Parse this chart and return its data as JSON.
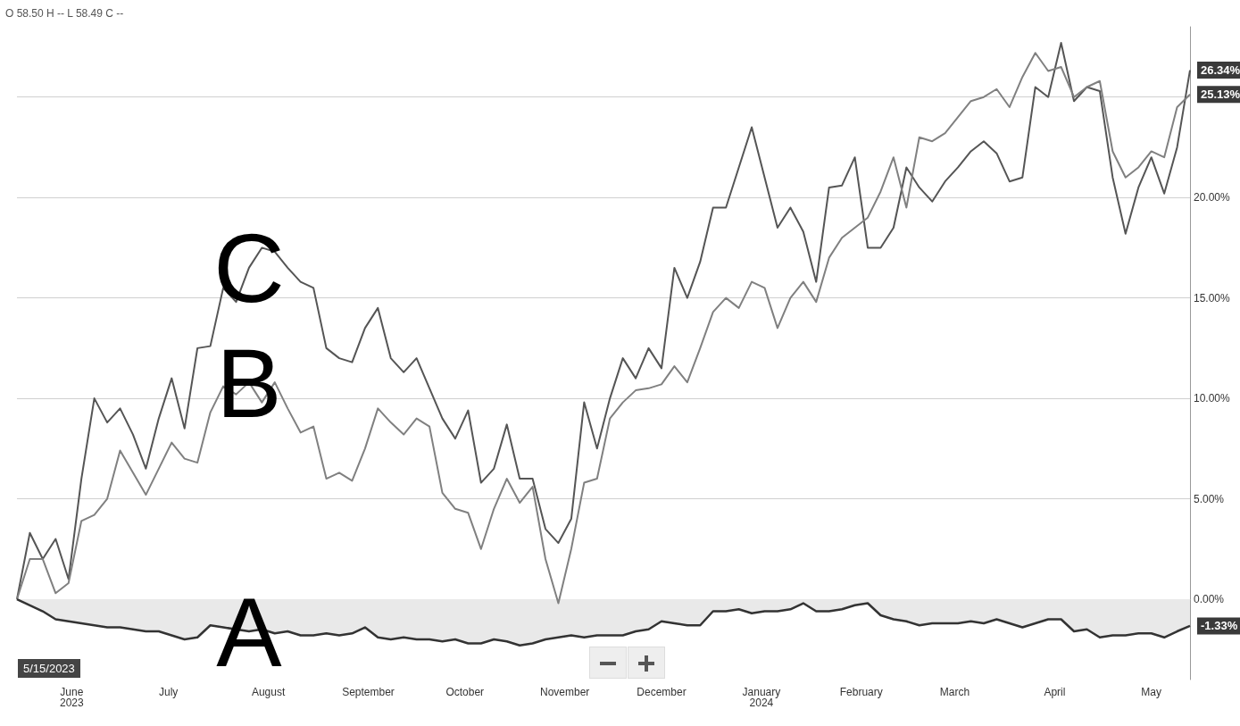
{
  "chart_data": {
    "type": "line",
    "annotations": [
      "O 58.50 H -- L 58.49 C --",
      "5/15/2023"
    ],
    "x": [
      "2023-05-15",
      "2023-05-19",
      "2023-05-23",
      "2023-05-27",
      "2023-05-31",
      "2023-06-04",
      "2023-06-08",
      "2023-06-12",
      "2023-06-16",
      "2023-06-20",
      "2023-06-24",
      "2023-06-28",
      "2023-07-02",
      "2023-07-06",
      "2023-07-10",
      "2023-07-14",
      "2023-07-18",
      "2023-07-22",
      "2023-07-26",
      "2023-07-30",
      "2023-08-03",
      "2023-08-07",
      "2023-08-11",
      "2023-08-15",
      "2023-08-19",
      "2023-08-23",
      "2023-08-27",
      "2023-08-31",
      "2023-09-04",
      "2023-09-08",
      "2023-09-12",
      "2023-09-16",
      "2023-09-20",
      "2023-09-24",
      "2023-09-28",
      "2023-10-02",
      "2023-10-06",
      "2023-10-10",
      "2023-10-14",
      "2023-10-18",
      "2023-10-22",
      "2023-10-26",
      "2023-10-30",
      "2023-11-03",
      "2023-11-07",
      "2023-11-11",
      "2023-11-15",
      "2023-11-19",
      "2023-11-23",
      "2023-11-27",
      "2023-12-01",
      "2023-12-05",
      "2023-12-09",
      "2023-12-13",
      "2023-12-17",
      "2023-12-21",
      "2023-12-25",
      "2023-12-29",
      "2024-01-02",
      "2024-01-06",
      "2024-01-10",
      "2024-01-14",
      "2024-01-18",
      "2024-01-22",
      "2024-01-26",
      "2024-01-30",
      "2024-02-03",
      "2024-02-07",
      "2024-02-11",
      "2024-02-15",
      "2024-02-19",
      "2024-02-23",
      "2024-02-27",
      "2024-03-02",
      "2024-03-06",
      "2024-03-10",
      "2024-03-14",
      "2024-03-18",
      "2024-03-22",
      "2024-03-26",
      "2024-03-30",
      "2024-04-03",
      "2024-04-07",
      "2024-04-11",
      "2024-04-15",
      "2024-04-19",
      "2024-04-23",
      "2024-04-27",
      "2024-05-01",
      "2024-05-05",
      "2024-05-09",
      "2024-05-13"
    ],
    "series": [
      {
        "name": "C",
        "color": "#555555",
        "values": [
          0,
          3.3,
          2.0,
          3.0,
          1.0,
          6.0,
          10.0,
          8.8,
          9.5,
          8.2,
          6.5,
          9.0,
          11.0,
          8.5,
          12.5,
          12.6,
          15.5,
          14.8,
          16.5,
          17.5,
          17.3,
          16.5,
          15.8,
          15.5,
          12.5,
          12.0,
          11.8,
          13.5,
          14.5,
          12.0,
          11.3,
          12.0,
          10.5,
          9.0,
          8.0,
          9.4,
          5.8,
          6.5,
          8.7,
          6.0,
          6.0,
          3.5,
          2.8,
          4.0,
          9.8,
          7.5,
          10.0,
          12.0,
          11.0,
          12.5,
          11.5,
          16.5,
          15.0,
          16.8,
          19.5,
          19.5,
          21.5,
          23.5,
          21.0,
          18.5,
          19.5,
          18.3,
          15.8,
          20.5,
          20.6,
          22.0,
          17.5,
          17.5,
          18.5,
          21.5,
          20.5,
          19.8,
          20.8,
          21.5,
          22.3,
          22.8,
          22.2,
          20.8,
          21.0,
          25.5,
          25.0,
          27.7,
          24.8,
          25.5,
          25.3,
          21.0,
          18.2,
          20.5,
          22.0,
          20.2,
          22.5,
          26.34
        ],
        "value_labels": [
          null,
          null,
          null,
          null,
          null,
          null,
          null,
          null,
          null,
          null,
          null,
          null,
          null,
          null,
          null,
          null,
          null,
          null,
          null,
          null,
          null,
          null,
          null,
          null,
          null,
          null,
          null,
          null,
          null,
          null,
          null,
          null,
          null,
          null,
          null,
          null,
          null,
          null,
          null,
          null,
          null,
          null,
          null,
          null,
          null,
          null,
          null,
          null,
          null,
          null,
          null,
          null,
          null,
          null,
          null,
          null,
          null,
          null,
          null,
          null,
          null,
          null,
          null,
          null,
          null,
          null,
          null,
          null,
          null,
          null,
          null,
          null,
          null,
          null,
          null,
          null,
          null,
          null,
          null,
          null,
          null,
          null,
          null,
          null,
          null,
          null,
          null,
          null,
          null,
          null,
          null,
          "26.34%"
        ]
      },
      {
        "name": "B",
        "color": "#808080",
        "values": [
          0,
          2.0,
          2.0,
          0.3,
          0.8,
          3.9,
          4.2,
          5.0,
          7.4,
          6.3,
          5.2,
          6.5,
          7.8,
          7.0,
          6.8,
          9.3,
          10.6,
          10.2,
          10.8,
          9.8,
          10.8,
          9.5,
          8.3,
          8.6,
          6.0,
          6.3,
          5.9,
          7.5,
          9.5,
          8.8,
          8.2,
          9.0,
          8.6,
          5.3,
          4.5,
          4.3,
          2.5,
          4.5,
          6.0,
          4.8,
          5.6,
          2.0,
          -0.2,
          2.5,
          5.8,
          6.0,
          9.0,
          9.8,
          10.4,
          10.5,
          10.7,
          11.6,
          10.8,
          12.5,
          14.3,
          15.0,
          14.5,
          15.8,
          15.5,
          13.5,
          15.0,
          15.8,
          14.8,
          17.0,
          18.0,
          18.5,
          19.0,
          20.3,
          22.0,
          19.5,
          23.0,
          22.8,
          23.2,
          24.0,
          24.8,
          25.0,
          25.4,
          24.5,
          26.0,
          27.2,
          26.3,
          26.5,
          25.0,
          25.5,
          25.8,
          22.3,
          21.0,
          21.5,
          22.3,
          22.0,
          24.5,
          25.13
        ],
        "value_labels": [
          null,
          null,
          null,
          null,
          null,
          null,
          null,
          null,
          null,
          null,
          null,
          null,
          null,
          null,
          null,
          null,
          null,
          null,
          null,
          null,
          null,
          null,
          null,
          null,
          null,
          null,
          null,
          null,
          null,
          null,
          null,
          null,
          null,
          null,
          null,
          null,
          null,
          null,
          null,
          null,
          null,
          null,
          null,
          null,
          null,
          null,
          null,
          null,
          null,
          null,
          null,
          null,
          null,
          null,
          null,
          null,
          null,
          null,
          null,
          null,
          null,
          null,
          null,
          null,
          null,
          null,
          null,
          null,
          null,
          null,
          null,
          null,
          null,
          null,
          null,
          null,
          null,
          null,
          null,
          null,
          null,
          null,
          null,
          null,
          null,
          null,
          null,
          null,
          null,
          null,
          null,
          "25.13%"
        ]
      },
      {
        "name": "A",
        "type": "area",
        "color": "#333333",
        "values": [
          0,
          -0.3,
          -0.6,
          -1.0,
          -1.1,
          -1.2,
          -1.3,
          -1.4,
          -1.4,
          -1.5,
          -1.6,
          -1.6,
          -1.8,
          -2.0,
          -1.9,
          -1.3,
          -1.4,
          -1.5,
          -1.6,
          -1.5,
          -1.7,
          -1.6,
          -1.8,
          -1.8,
          -1.7,
          -1.8,
          -1.7,
          -1.4,
          -1.9,
          -2.0,
          -1.9,
          -2.0,
          -2.0,
          -2.1,
          -2.0,
          -2.2,
          -2.2,
          -2.0,
          -2.1,
          -2.3,
          -2.2,
          -2.0,
          -1.9,
          -1.8,
          -1.9,
          -1.8,
          -1.8,
          -1.8,
          -1.6,
          -1.5,
          -1.1,
          -1.2,
          -1.3,
          -1.3,
          -0.6,
          -0.6,
          -0.5,
          -0.7,
          -0.6,
          -0.6,
          -0.5,
          -0.2,
          -0.6,
          -0.6,
          -0.5,
          -0.3,
          -0.2,
          -0.8,
          -1.0,
          -1.1,
          -1.3,
          -1.2,
          -1.2,
          -1.2,
          -1.1,
          -1.2,
          -1.0,
          -1.2,
          -1.4,
          -1.2,
          -1.0,
          -1.0,
          -1.6,
          -1.5,
          -1.9,
          -1.8,
          -1.8,
          -1.7,
          -1.7,
          -1.9,
          -1.6,
          -1.33
        ],
        "value_labels": [
          null,
          null,
          null,
          null,
          null,
          null,
          null,
          null,
          null,
          null,
          null,
          null,
          null,
          null,
          null,
          null,
          null,
          null,
          null,
          null,
          null,
          null,
          null,
          null,
          null,
          null,
          null,
          null,
          null,
          null,
          null,
          null,
          null,
          null,
          null,
          null,
          null,
          null,
          null,
          null,
          null,
          null,
          null,
          null,
          null,
          null,
          null,
          null,
          null,
          null,
          null,
          null,
          null,
          null,
          null,
          null,
          null,
          null,
          null,
          null,
          null,
          null,
          null,
          null,
          null,
          null,
          null,
          null,
          null,
          null,
          null,
          null,
          null,
          null,
          null,
          null,
          null,
          null,
          null,
          null,
          null,
          null,
          null,
          null,
          null,
          null,
          null,
          null,
          null,
          null,
          null,
          "-1.33%"
        ]
      }
    ],
    "xlim": [
      "2023-05-15",
      "2024-05-13"
    ],
    "xticks": [
      {
        "value": "2023-06-01",
        "label": "June\n2023"
      },
      {
        "value": "2023-07-01",
        "label": "July"
      },
      {
        "value": "2023-08-01",
        "label": "August"
      },
      {
        "value": "2023-09-01",
        "label": "September"
      },
      {
        "value": "2023-10-01",
        "label": "October"
      },
      {
        "value": "2023-11-01",
        "label": "November"
      },
      {
        "value": "2023-12-01",
        "label": "December"
      },
      {
        "value": "2024-01-01",
        "label": "January\n2024"
      },
      {
        "value": "2024-02-01",
        "label": "February"
      },
      {
        "value": "2024-03-01",
        "label": "March"
      },
      {
        "value": "2024-04-01",
        "label": "April"
      },
      {
        "value": "2024-05-01",
        "label": "May"
      }
    ],
    "ylim": [
      -4,
      28.5
    ],
    "yticks": [
      {
        "value": 0,
        "label": "0.00%"
      },
      {
        "value": 5,
        "label": "5.00%"
      },
      {
        "value": 10,
        "label": "10.00%"
      },
      {
        "value": 15,
        "label": "15.00%"
      },
      {
        "value": 20,
        "label": "20.00%"
      },
      {
        "value": 25,
        "label": null
      }
    ],
    "grid": "y",
    "marker": "none",
    "line_style": "solid"
  }
}
